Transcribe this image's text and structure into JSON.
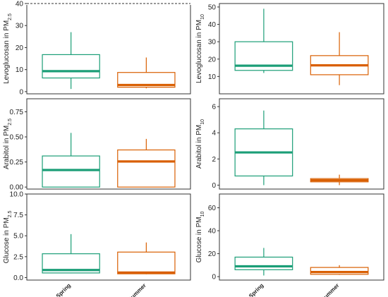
{
  "colors": {
    "spring": "#1b9e77",
    "summer": "#d95f02",
    "frame": "#333333"
  },
  "categories": [
    "Spring",
    "Summer"
  ],
  "chart_data": [
    {
      "type": "box",
      "ylabel_main": "Levoglucosan in PM",
      "ylabel_sub": "2.5",
      "ylim": [
        -1,
        40
      ],
      "yticks": [
        0,
        10,
        20,
        30,
        40
      ],
      "tick_labels": [
        "0",
        "10",
        "20",
        "30",
        "40"
      ],
      "dashed_top": true,
      "series": [
        {
          "category": "Spring",
          "min": 1.2,
          "q1": 6.2,
          "median": 9.3,
          "q3": 16.8,
          "max": 27
        },
        {
          "category": "Summer",
          "min": 1.5,
          "q1": 2.0,
          "median": 3.0,
          "q3": 8.7,
          "max": 15.5
        }
      ]
    },
    {
      "type": "box",
      "ylabel_main": "Levoglucosan in PM",
      "ylabel_sub": "10",
      "ylim": [
        0,
        52
      ],
      "yticks": [
        10,
        20,
        30,
        40,
        50
      ],
      "tick_labels": [
        "10",
        "20",
        "30",
        "40",
        "50"
      ],
      "series": [
        {
          "category": "Spring",
          "min": 12,
          "q1": 13.5,
          "median": 16.2,
          "q3": 30,
          "max": 49
        },
        {
          "category": "Summer",
          "min": 5,
          "q1": 11,
          "median": 16.4,
          "q3": 22,
          "max": 35.5
        }
      ]
    },
    {
      "type": "box",
      "ylabel_main": "Arabitol in PM",
      "ylabel_sub": "2.5",
      "ylim": [
        -0.02,
        0.88
      ],
      "yticks": [
        0.0,
        0.25,
        0.5,
        0.75
      ],
      "tick_labels": [
        "0.00",
        "0.25",
        "0.50",
        "0.75"
      ],
      "series": [
        {
          "category": "Spring",
          "min": 0.0,
          "q1": 0.0,
          "median": 0.17,
          "q3": 0.31,
          "max": 0.54
        },
        {
          "category": "Summer",
          "min": 0.0,
          "q1": 0.0,
          "median": 0.255,
          "q3": 0.37,
          "max": 0.48
        }
      ]
    },
    {
      "type": "box",
      "ylabel_main": "Arabitol in PM",
      "ylabel_sub": "10",
      "ylim": [
        -0.3,
        6.6
      ],
      "yticks": [
        0,
        2,
        4,
        6
      ],
      "tick_labels": [
        "0",
        "2",
        "4",
        "6"
      ],
      "series": [
        {
          "category": "Spring",
          "min": 0.0,
          "q1": 0.7,
          "median": 2.5,
          "q3": 4.3,
          "max": 5.7
        },
        {
          "category": "Summer",
          "min": 0.0,
          "q1": 0.25,
          "median": 0.37,
          "q3": 0.5,
          "max": 0.8
        }
      ]
    },
    {
      "type": "box",
      "ylabel_main": "Glucose in PM",
      "ylabel_sub": "2.5",
      "ylim": [
        -0.3,
        10.0
      ],
      "yticks": [
        0.0,
        2.5,
        5.0,
        7.5,
        10.0
      ],
      "tick_labels": [
        "0.0",
        "2.5",
        "5.0",
        "7.5",
        "10.0"
      ],
      "series": [
        {
          "category": "Spring",
          "min": 0.5,
          "q1": 0.55,
          "median": 0.9,
          "q3": 2.85,
          "max": 5.2
        },
        {
          "category": "Summer",
          "min": 0.4,
          "q1": 0.45,
          "median": 0.6,
          "q3": 3.05,
          "max": 4.2
        }
      ]
    },
    {
      "type": "box",
      "ylabel_main": "Glucose in PM",
      "ylabel_sub": "10",
      "ylim": [
        -3,
        72
      ],
      "yticks": [
        0,
        20,
        40,
        60
      ],
      "tick_labels": [
        "0",
        "20",
        "40",
        "60"
      ],
      "series": [
        {
          "category": "Spring",
          "min": 1,
          "q1": 6,
          "median": 9,
          "q3": 17,
          "max": 25
        },
        {
          "category": "Summer",
          "min": 1.5,
          "q1": 2,
          "median": 4,
          "q3": 8,
          "max": 10
        }
      ]
    }
  ]
}
